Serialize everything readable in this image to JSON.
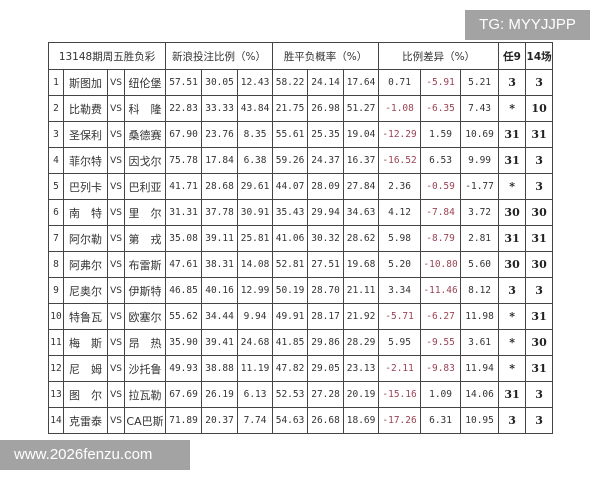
{
  "header": {
    "title": "13148期周五胜负彩",
    "sina_ratio": "新浪投注比例（%）",
    "probability": "胜平负概率（%）",
    "diff": "比例差异（%）",
    "ren9": "任9",
    "fourteen": "14场"
  },
  "vs_label": "VS",
  "colors": {
    "negative": "#9a4456",
    "badge": "#a3a3a3"
  },
  "rows": [
    {
      "no": "1",
      "home": "斯图加",
      "away": "纽伦堡",
      "sina": [
        "57.51",
        "30.05",
        "12.43"
      ],
      "prob": [
        "58.22",
        "24.14",
        "17.64"
      ],
      "diff": [
        "0.71",
        "-5.91",
        "5.21"
      ],
      "ren9": "3",
      "p14": "3"
    },
    {
      "no": "2",
      "home": "比勒费",
      "away": "科　隆",
      "sina": [
        "22.83",
        "33.33",
        "43.84"
      ],
      "prob": [
        "21.75",
        "26.98",
        "51.27"
      ],
      "diff": [
        "-1.08",
        "-6.35",
        "7.43"
      ],
      "ren9": "*",
      "p14": "10"
    },
    {
      "no": "3",
      "home": "圣保利",
      "away": "桑德赛",
      "sina": [
        "67.90",
        "23.76",
        "8.35"
      ],
      "prob": [
        "55.61",
        "25.35",
        "19.04"
      ],
      "diff": [
        "-12.29",
        "1.59",
        "10.69"
      ],
      "ren9": "31",
      "p14": "31"
    },
    {
      "no": "4",
      "home": "菲尔特",
      "away": "因戈尔",
      "sina": [
        "75.78",
        "17.84",
        "6.38"
      ],
      "prob": [
        "59.26",
        "24.37",
        "16.37"
      ],
      "diff": [
        "-16.52",
        "6.53",
        "9.99"
      ],
      "ren9": "31",
      "p14": "3"
    },
    {
      "no": "5",
      "home": "巴列卡",
      "away": "巴利亚",
      "sina": [
        "41.71",
        "28.68",
        "29.61"
      ],
      "prob": [
        "44.07",
        "28.09",
        "27.84"
      ],
      "diff": [
        "2.36",
        "-0.59",
        "-1.77"
      ],
      "ren9": "*",
      "p14": "3"
    },
    {
      "no": "6",
      "home": "南　特",
      "away": "里　尔",
      "sina": [
        "31.31",
        "37.78",
        "30.91"
      ],
      "prob": [
        "35.43",
        "29.94",
        "34.63"
      ],
      "diff": [
        "4.12",
        "-7.84",
        "3.72"
      ],
      "ren9": "30",
      "p14": "30"
    },
    {
      "no": "7",
      "home": "阿尔勒",
      "away": "第　戎",
      "sina": [
        "35.08",
        "39.11",
        "25.81"
      ],
      "prob": [
        "41.06",
        "30.32",
        "28.62"
      ],
      "diff": [
        "5.98",
        "-8.79",
        "2.81"
      ],
      "ren9": "31",
      "p14": "31"
    },
    {
      "no": "8",
      "home": "阿弗尔",
      "away": "布雷斯",
      "sina": [
        "47.61",
        "38.31",
        "14.08"
      ],
      "prob": [
        "52.81",
        "27.51",
        "19.68"
      ],
      "diff": [
        "5.20",
        "-10.80",
        "5.60"
      ],
      "ren9": "30",
      "p14": "30"
    },
    {
      "no": "9",
      "home": "尼奥尔",
      "away": "伊斯特",
      "sina": [
        "46.85",
        "40.16",
        "12.99"
      ],
      "prob": [
        "50.19",
        "28.70",
        "21.11"
      ],
      "diff": [
        "3.34",
        "-11.46",
        "8.12"
      ],
      "ren9": "3",
      "p14": "3"
    },
    {
      "no": "10",
      "home": "特鲁瓦",
      "away": "欧塞尔",
      "sina": [
        "55.62",
        "34.44",
        "9.94"
      ],
      "prob": [
        "49.91",
        "28.17",
        "21.92"
      ],
      "diff": [
        "-5.71",
        "-6.27",
        "11.98"
      ],
      "ren9": "*",
      "p14": "31"
    },
    {
      "no": "11",
      "home": "梅　斯",
      "away": "昂　热",
      "sina": [
        "35.90",
        "39.41",
        "24.68"
      ],
      "prob": [
        "41.85",
        "29.86",
        "28.29"
      ],
      "diff": [
        "5.95",
        "-9.55",
        "3.61"
      ],
      "ren9": "*",
      "p14": "30"
    },
    {
      "no": "12",
      "home": "尼　姆",
      "away": "沙托鲁",
      "sina": [
        "49.93",
        "38.88",
        "11.19"
      ],
      "prob": [
        "47.82",
        "29.05",
        "23.13"
      ],
      "diff": [
        "-2.11",
        "-9.83",
        "11.94"
      ],
      "ren9": "*",
      "p14": "31"
    },
    {
      "no": "13",
      "home": "图　尔",
      "away": "拉瓦勒",
      "sina": [
        "67.69",
        "26.19",
        "6.13"
      ],
      "prob": [
        "52.53",
        "27.28",
        "20.19"
      ],
      "diff": [
        "-15.16",
        "1.09",
        "14.06"
      ],
      "ren9": "31",
      "p14": "3"
    },
    {
      "no": "14",
      "home": "克雷泰",
      "away": "CA巴斯",
      "sina": [
        "71.89",
        "20.37",
        "7.74"
      ],
      "prob": [
        "54.63",
        "26.68",
        "18.69"
      ],
      "diff": [
        "-17.26",
        "6.31",
        "10.95"
      ],
      "ren9": "3",
      "p14": "3"
    }
  ],
  "watermarks": {
    "tg": "TG: MYYJJPP",
    "site": "www.2026fenzu.com"
  }
}
